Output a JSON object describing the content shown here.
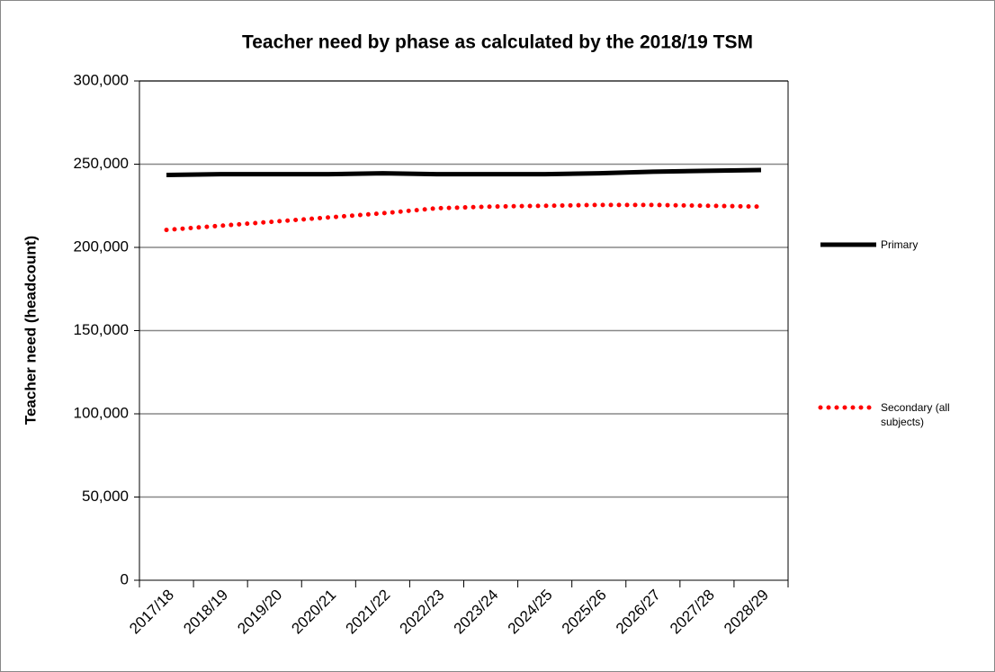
{
  "chart_data": {
    "type": "line",
    "title": "Teacher need by phase as calculated by the 2018/19 TSM",
    "y_label": "Teacher need (headcount)",
    "categories": [
      "2017/18",
      "2018/19",
      "2019/20",
      "2020/21",
      "2021/22",
      "2022/23",
      "2023/24",
      "2024/25",
      "2025/26",
      "2026/27",
      "2027/28",
      "2028/29"
    ],
    "series": [
      {
        "name": "Primary",
        "color": "#000000",
        "style": "solid",
        "values": [
          243500,
          244000,
          244000,
          244000,
          244500,
          244000,
          244000,
          244000,
          244500,
          245500,
          246000,
          246500
        ]
      },
      {
        "name": "Secondary (all subjects)",
        "color": "#ff0000",
        "style": "dotted",
        "values": [
          210500,
          213000,
          215500,
          218000,
          220500,
          223500,
          224500,
          225000,
          225500,
          225500,
          225000,
          224500
        ]
      }
    ],
    "ylim": [
      0,
      300000
    ],
    "yticks": [
      0,
      {
        "value": 50000,
        "label": "50,000"
      },
      {
        "value": 100000,
        "label": "100,000"
      },
      {
        "value": 150000,
        "label": "150,000"
      },
      {
        "value": 200000,
        "label": "200,000"
      },
      {
        "value": 250000,
        "label": "250,000"
      },
      {
        "value": 300000,
        "label": "300,000"
      }
    ],
    "grid": true,
    "legend": "right"
  }
}
